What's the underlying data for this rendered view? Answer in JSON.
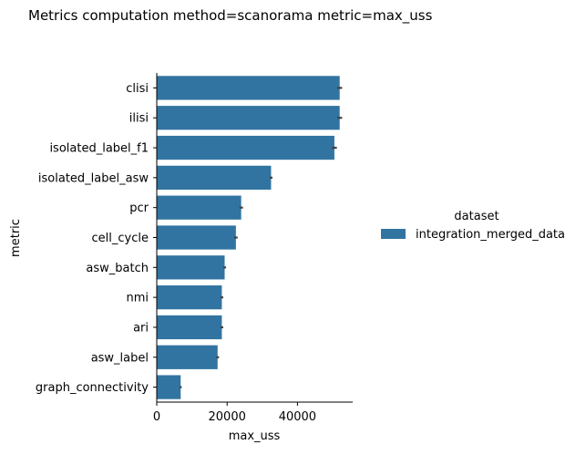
{
  "chart_data": {
    "type": "bar",
    "orientation": "horizontal",
    "title": "Metrics computation method=scanorama metric=max_uss",
    "xlabel": "max_uss",
    "ylabel": "metric",
    "xlim": [
      0,
      55000
    ],
    "xticks": [
      0,
      20000,
      40000
    ],
    "categories": [
      "clisi",
      "ilisi",
      "isolated_label_f1",
      "isolated_label_asw",
      "pcr",
      "cell_cycle",
      "asw_batch",
      "nmi",
      "ari",
      "asw_label",
      "graph_connectivity"
    ],
    "series": [
      {
        "name": "integration_merged_data",
        "color": "#3274a1",
        "values": [
          52000,
          52000,
          50500,
          32500,
          24000,
          22500,
          19300,
          18500,
          18500,
          17300,
          6800
        ],
        "error": [
          700,
          700,
          700,
          400,
          500,
          500,
          400,
          400,
          400,
          400,
          300
        ]
      }
    ],
    "legend": {
      "title": "dataset",
      "placement": "right"
    },
    "grid": false
  }
}
